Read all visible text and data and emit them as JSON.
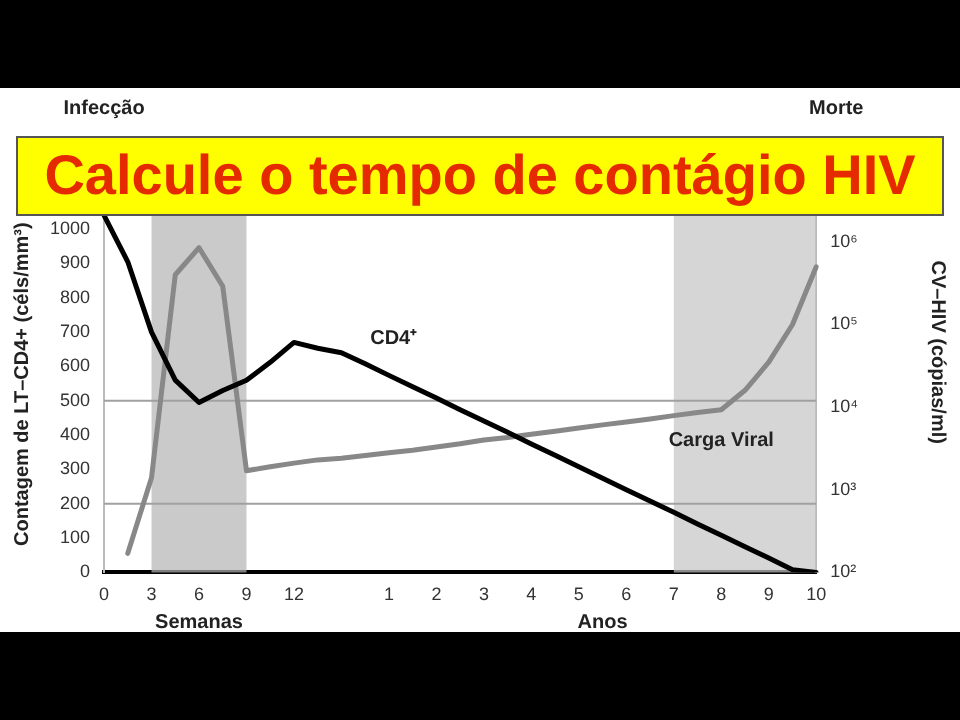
{
  "chart_data": {
    "type": "line",
    "title": "Calcule o tempo de contágio HIV",
    "xlabel": "Semanas",
    "ylabel": "Contagem de LT–CD4+ (céls/mm³)",
    "y2label": "CV–HIV (cópias/ml)",
    "annotations": [
      "Infecção",
      "Morte",
      "Anos"
    ],
    "categories": [
      "0",
      null,
      "3",
      null,
      "6",
      null,
      "9",
      null,
      "12",
      null,
      null,
      null,
      "1",
      null,
      "2",
      null,
      "3",
      null,
      "4",
      null,
      "5",
      null,
      "6",
      null,
      "7",
      null,
      "8",
      null,
      "9",
      null,
      "10"
    ],
    "series": [
      {
        "name": "CD4⁺",
        "color": "#000000",
        "values": [
          1040,
          905,
          700,
          560,
          495,
          530,
          560,
          612,
          670,
          653,
          640,
          608,
          574,
          541,
          508,
          474,
          441,
          408,
          374,
          341,
          308,
          274,
          241,
          208,
          175,
          141,
          108,
          75,
          42,
          8,
          0
        ]
      },
      {
        "name": "Carga Viral",
        "color": "#888888",
        "axis": "y2",
        "values": [
          null,
          170,
          1400,
          400000,
          850000,
          290000,
          1700,
          1900,
          2100,
          2300,
          2400,
          2600,
          2800,
          3000,
          3300,
          3600,
          4000,
          4300,
          4700,
          5100,
          5600,
          6100,
          6600,
          7200,
          7900,
          8600,
          9300,
          16000,
          35000,
          100000,
          500000
        ]
      }
    ],
    "ylim": [
      0,
      1050
    ],
    "yticks": [
      0,
      100,
      200,
      300,
      400,
      500,
      600,
      700,
      800,
      900,
      1000
    ],
    "y2lim": [
      100,
      2300000
    ],
    "y2ticks": [
      {
        "value": 100,
        "label": "10²"
      },
      {
        "value": 1000,
        "label": "10³"
      },
      {
        "value": 10000,
        "label": "10⁴"
      },
      {
        "value": 100000,
        "label": "10⁵"
      },
      {
        "value": 1000000,
        "label": "10⁶"
      }
    ],
    "log": "y2",
    "grid": false,
    "legend": false,
    "marker": "none",
    "line_style": "solid",
    "bands": [
      {
        "axis": "x",
        "from": "3",
        "to": "9",
        "color": "#b4b4b4"
      },
      {
        "axis": "x",
        "from": "7",
        "to": "10",
        "color": "#c4c4c4"
      }
    ],
    "ref_lines": [
      {
        "axis": "y",
        "value": 500,
        "color": "#a0a0a0"
      },
      {
        "axis": "y",
        "value": 200,
        "color": "#a0a0a0"
      }
    ]
  }
}
